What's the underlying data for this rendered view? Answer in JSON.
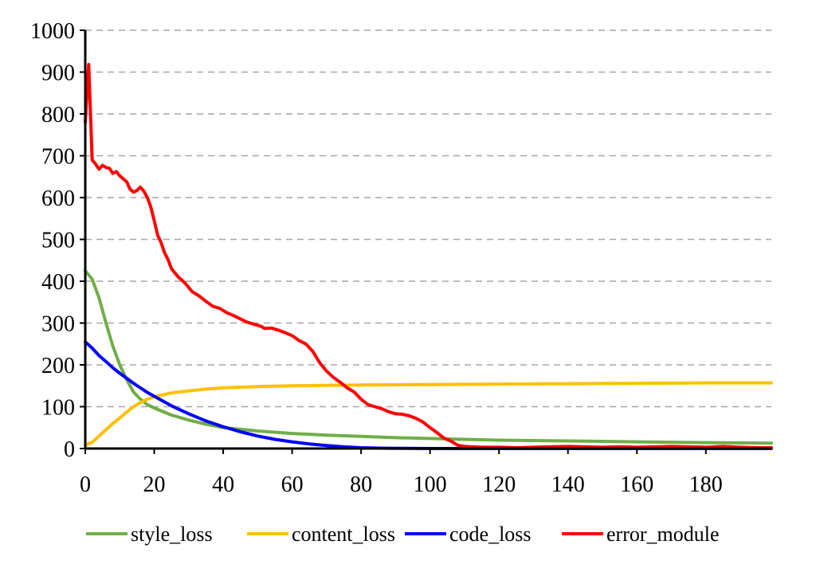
{
  "chart_data": {
    "type": "line",
    "title": "",
    "xlabel": "",
    "ylabel": "",
    "xlim": [
      0,
      199
    ],
    "ylim": [
      0,
      1000
    ],
    "x_ticks": [
      0,
      20,
      40,
      60,
      80,
      100,
      120,
      140,
      160,
      180
    ],
    "y_ticks": [
      0,
      100,
      200,
      300,
      400,
      500,
      600,
      700,
      800,
      900,
      1000
    ],
    "grid": "horizontal dashed",
    "legend_position": "bottom",
    "series": [
      {
        "name": "style_loss",
        "color": "#70AD47",
        "points": [
          [
            0,
            425
          ],
          [
            2,
            405
          ],
          [
            4,
            360
          ],
          [
            6,
            300
          ],
          [
            8,
            245
          ],
          [
            10,
            200
          ],
          [
            12,
            165
          ],
          [
            14,
            135
          ],
          [
            16,
            118
          ],
          [
            18,
            105
          ],
          [
            20,
            97
          ],
          [
            25,
            80
          ],
          [
            30,
            68
          ],
          [
            35,
            58
          ],
          [
            40,
            50
          ],
          [
            50,
            42
          ],
          [
            60,
            36
          ],
          [
            70,
            32
          ],
          [
            80,
            29
          ],
          [
            90,
            26
          ],
          [
            100,
            24
          ],
          [
            110,
            22
          ],
          [
            120,
            20
          ],
          [
            140,
            18
          ],
          [
            160,
            16
          ],
          [
            180,
            14
          ],
          [
            199,
            13
          ]
        ]
      },
      {
        "name": "content_loss",
        "color": "#FFC000",
        "points": [
          [
            0,
            8
          ],
          [
            2,
            15
          ],
          [
            4,
            30
          ],
          [
            6,
            45
          ],
          [
            8,
            60
          ],
          [
            10,
            73
          ],
          [
            12,
            87
          ],
          [
            14,
            100
          ],
          [
            16,
            110
          ],
          [
            18,
            118
          ],
          [
            20,
            124
          ],
          [
            25,
            133
          ],
          [
            30,
            138
          ],
          [
            35,
            142
          ],
          [
            40,
            145
          ],
          [
            50,
            148
          ],
          [
            60,
            150
          ],
          [
            70,
            151
          ],
          [
            80,
            152
          ],
          [
            100,
            153
          ],
          [
            120,
            154
          ],
          [
            140,
            155
          ],
          [
            160,
            156
          ],
          [
            180,
            157
          ],
          [
            199,
            157
          ]
        ]
      },
      {
        "name": "code_loss",
        "color": "#0000FF",
        "points": [
          [
            0,
            255
          ],
          [
            2,
            240
          ],
          [
            4,
            222
          ],
          [
            6,
            208
          ],
          [
            8,
            193
          ],
          [
            10,
            180
          ],
          [
            12,
            168
          ],
          [
            14,
            156
          ],
          [
            16,
            145
          ],
          [
            18,
            134
          ],
          [
            20,
            125
          ],
          [
            25,
            102
          ],
          [
            30,
            83
          ],
          [
            35,
            66
          ],
          [
            40,
            52
          ],
          [
            45,
            40
          ],
          [
            50,
            30
          ],
          [
            55,
            22
          ],
          [
            60,
            16
          ],
          [
            65,
            11
          ],
          [
            70,
            7
          ],
          [
            75,
            4
          ],
          [
            80,
            2
          ],
          [
            85,
            1
          ],
          [
            90,
            0.5
          ],
          [
            100,
            0
          ],
          [
            120,
            0
          ],
          [
            140,
            0
          ],
          [
            160,
            0
          ],
          [
            180,
            0
          ],
          [
            199,
            0
          ]
        ]
      },
      {
        "name": "error_module",
        "color": "#FF0000",
        "points": [
          [
            0,
            780
          ],
          [
            1,
            918
          ],
          [
            2,
            690
          ],
          [
            3,
            680
          ],
          [
            4,
            668
          ],
          [
            5,
            677
          ],
          [
            6,
            672
          ],
          [
            7,
            670
          ],
          [
            8,
            658
          ],
          [
            9,
            662
          ],
          [
            10,
            652
          ],
          [
            11,
            645
          ],
          [
            12,
            638
          ],
          [
            13,
            620
          ],
          [
            14,
            613
          ],
          [
            15,
            617
          ],
          [
            16,
            625
          ],
          [
            17,
            615
          ],
          [
            18,
            600
          ],
          [
            19,
            578
          ],
          [
            20,
            545
          ],
          [
            21,
            510
          ],
          [
            22,
            492
          ],
          [
            23,
            468
          ],
          [
            24,
            452
          ],
          [
            25,
            430
          ],
          [
            27,
            410
          ],
          [
            29,
            395
          ],
          [
            31,
            375
          ],
          [
            33,
            365
          ],
          [
            35,
            352
          ],
          [
            37,
            340
          ],
          [
            39,
            335
          ],
          [
            41,
            325
          ],
          [
            43,
            318
          ],
          [
            45,
            310
          ],
          [
            47,
            302
          ],
          [
            49,
            297
          ],
          [
            51,
            292
          ],
          [
            52,
            287
          ],
          [
            54,
            288
          ],
          [
            56,
            283
          ],
          [
            58,
            277
          ],
          [
            60,
            270
          ],
          [
            62,
            258
          ],
          [
            64,
            250
          ],
          [
            66,
            232
          ],
          [
            68,
            205
          ],
          [
            70,
            185
          ],
          [
            72,
            170
          ],
          [
            74,
            158
          ],
          [
            76,
            145
          ],
          [
            78,
            135
          ],
          [
            80,
            118
          ],
          [
            82,
            105
          ],
          [
            84,
            100
          ],
          [
            86,
            95
          ],
          [
            88,
            88
          ],
          [
            90,
            83
          ],
          [
            92,
            82
          ],
          [
            94,
            78
          ],
          [
            96,
            72
          ],
          [
            98,
            63
          ],
          [
            100,
            50
          ],
          [
            102,
            38
          ],
          [
            104,
            25
          ],
          [
            106,
            18
          ],
          [
            108,
            8
          ],
          [
            110,
            5
          ],
          [
            112,
            4
          ],
          [
            115,
            3
          ],
          [
            120,
            3
          ],
          [
            125,
            2
          ],
          [
            130,
            3
          ],
          [
            135,
            4
          ],
          [
            140,
            5
          ],
          [
            145,
            4
          ],
          [
            150,
            3
          ],
          [
            155,
            4
          ],
          [
            160,
            3
          ],
          [
            165,
            4
          ],
          [
            170,
            5
          ],
          [
            175,
            4
          ],
          [
            180,
            3
          ],
          [
            185,
            5
          ],
          [
            190,
            3
          ],
          [
            195,
            2
          ],
          [
            199,
            2
          ]
        ]
      }
    ]
  }
}
